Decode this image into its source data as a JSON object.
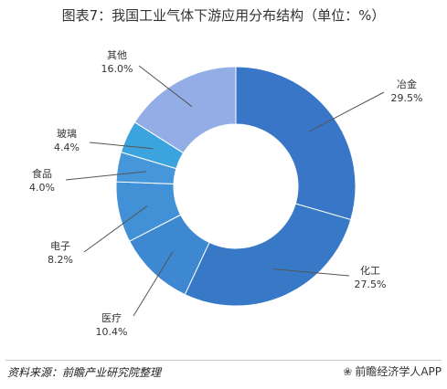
{
  "title": "图表7：我国工业气体下游应用分布结构（单位：%）",
  "source": "资料来源：前瞻产业研究院整理",
  "brand": "前瞻经济学人APP",
  "brand_icon": "wechat-icon",
  "chart_data": {
    "type": "pie",
    "style": "donut",
    "title": "图表7：我国工业气体下游应用分布结构（单位：%）",
    "unit": "%",
    "slices": [
      {
        "label": "冶金",
        "value": 29.5,
        "value_text": "29.5%",
        "color": "#3a76c8"
      },
      {
        "label": "化工",
        "value": 27.5,
        "value_text": "27.5%",
        "color": "#3779c6"
      },
      {
        "label": "医疗",
        "value": 10.4,
        "value_text": "10.4%",
        "color": "#3d88d0"
      },
      {
        "label": "电子",
        "value": 8.2,
        "value_text": "8.2%",
        "color": "#4291d6"
      },
      {
        "label": "食品",
        "value": 4.0,
        "value_text": "4.0%",
        "color": "#4597da"
      },
      {
        "label": "玻璃",
        "value": 4.4,
        "value_text": "4.4%",
        "color": "#3ba3dd"
      },
      {
        "label": "其他",
        "value": 16.0,
        "value_text": "16.0%",
        "color": "#93aee6"
      }
    ]
  }
}
